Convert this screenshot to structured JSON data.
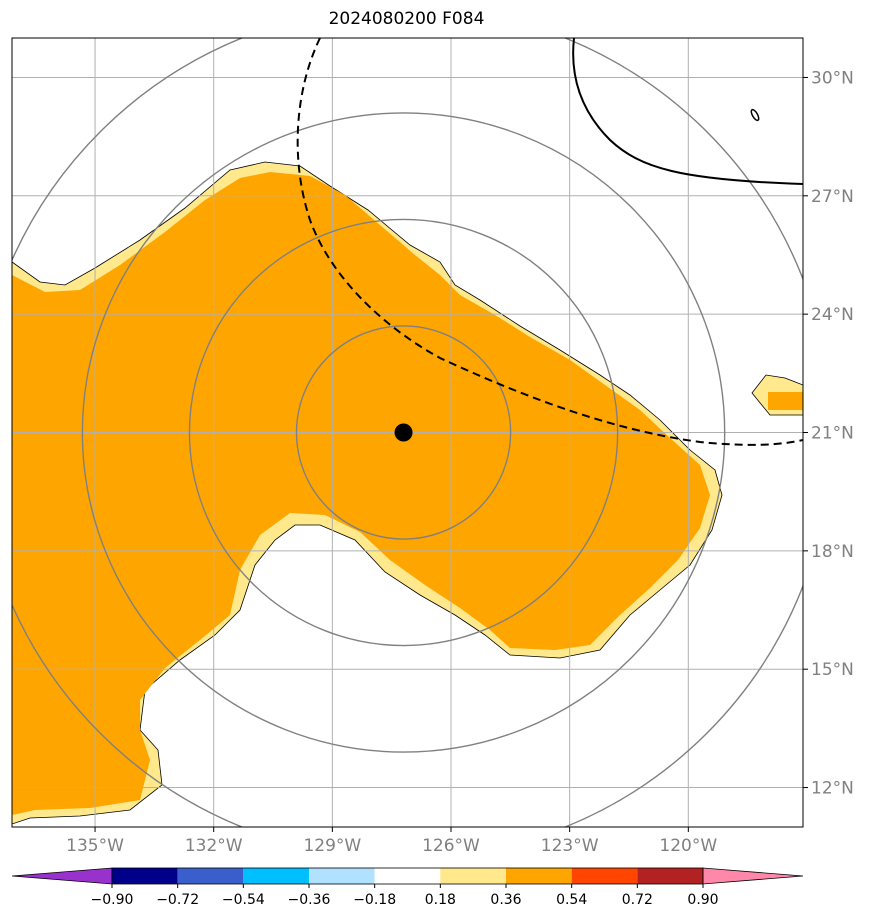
{
  "title": "2024080200 F084",
  "map": {
    "lon_ticks": [
      {
        "lon": -135,
        "label": "135°W"
      },
      {
        "lon": -132,
        "label": "132°W"
      },
      {
        "lon": -129,
        "label": "129°W"
      },
      {
        "lon": -126,
        "label": "126°W"
      },
      {
        "lon": -123,
        "label": "123°W"
      },
      {
        "lon": -120,
        "label": "120°W"
      }
    ],
    "lat_ticks": [
      {
        "lat": 12,
        "label": "12°N"
      },
      {
        "lat": 15,
        "label": "15°N"
      },
      {
        "lat": 18,
        "label": "18°N"
      },
      {
        "lat": 21,
        "label": "21°N"
      },
      {
        "lat": 24,
        "label": "24°N"
      },
      {
        "lat": 27,
        "label": "27°N"
      },
      {
        "lat": 30,
        "label": "30°N"
      }
    ],
    "extent": {
      "lon_min": -137.1,
      "lon_max": -117.1,
      "lat_min": 11.0,
      "lat_max": 31.0
    },
    "storm_center": {
      "lon": -127.2,
      "lat": 21.0
    },
    "range_rings_deg_lat": [
      2.7,
      5.4,
      8.1,
      10.8
    ],
    "colors": {
      "field_main": "#ffa500",
      "field_edge": "#ffe98c",
      "ring": "#808080",
      "grid": "#b0b0b0",
      "tick_label": "#808080"
    }
  },
  "colorbar": {
    "boundaries": [
      "−0.90",
      "−0.72",
      "−0.54",
      "−0.36",
      "−0.18",
      "0.18",
      "0.36",
      "0.54",
      "0.72",
      "0.90"
    ],
    "colors": [
      "#9932cc",
      "#00008b",
      "#3a5fcd",
      "#00bfff",
      "#b0e2ff",
      "#ffffff",
      "#ffe98c",
      "#ffa500",
      "#ff4500",
      "#b22222",
      "#ff88aa"
    ]
  }
}
